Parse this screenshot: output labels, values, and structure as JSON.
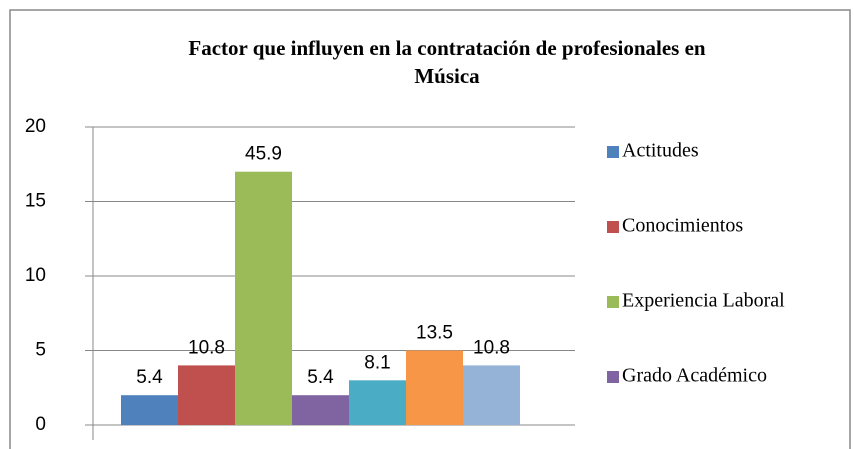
{
  "chart_data": {
    "type": "bar",
    "title_lines": [
      "Factor que influyen en la contratación de profesionales en",
      "Música"
    ],
    "values": [
      2,
      4,
      17,
      2,
      3,
      5,
      4
    ],
    "data_labels": [
      5.4,
      10.8,
      45.9,
      5.4,
      8.1,
      13.5,
      10.8
    ],
    "colors": [
      "#4f81bd",
      "#c0504d",
      "#9bbb59",
      "#8064a2",
      "#4bacc6",
      "#f79646",
      "#95b3d7"
    ],
    "legend": [
      {
        "name": "Actitudes",
        "color": "#4f81bd"
      },
      {
        "name": "Conocimientos",
        "color": "#c0504d"
      },
      {
        "name": "Experiencia Laboral",
        "color": "#9bbb59"
      },
      {
        "name": "Grado Académico",
        "color": "#8064a2"
      }
    ],
    "ylim": [
      0,
      20
    ],
    "yticks": [
      0,
      5,
      10,
      15,
      20
    ],
    "grid": true
  }
}
